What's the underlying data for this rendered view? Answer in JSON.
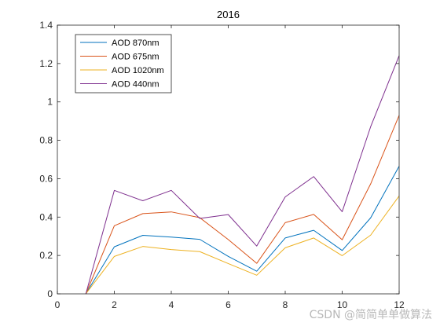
{
  "chart_data": {
    "type": "line",
    "title": "2016",
    "xlabel": "",
    "ylabel": "",
    "xlim": [
      0,
      12
    ],
    "ylim": [
      0,
      1.4
    ],
    "xticks": [
      0,
      2,
      4,
      6,
      8,
      10,
      12
    ],
    "yticks": [
      0,
      0.2,
      0.4,
      0.6,
      0.8,
      1,
      1.2,
      1.4
    ],
    "xtick_labels": [
      "0",
      "2",
      "4",
      "6",
      "8",
      "10",
      "12"
    ],
    "ytick_labels": [
      "0",
      "0.2",
      "0.4",
      "0.6",
      "0.8",
      "1",
      "1.2",
      "1.4"
    ],
    "grid": false,
    "legend_position": "top-left",
    "x": [
      1,
      2,
      3,
      4,
      5,
      6,
      7,
      8,
      9,
      10,
      11,
      12
    ],
    "series": [
      {
        "name": "AOD 870nm",
        "color": "#0072BD",
        "values": [
          0,
          0.245,
          0.305,
          0.296,
          0.284,
          0.195,
          0.118,
          0.291,
          0.331,
          0.226,
          0.396,
          0.665
        ]
      },
      {
        "name": "AOD 675nm",
        "color": "#D95319",
        "values": [
          0,
          0.355,
          0.418,
          0.427,
          0.397,
          0.283,
          0.159,
          0.371,
          0.414,
          0.282,
          0.573,
          0.93
        ]
      },
      {
        "name": "AOD 1020nm",
        "color": "#EDB120",
        "values": [
          0,
          0.195,
          0.247,
          0.231,
          0.22,
          0.158,
          0.097,
          0.24,
          0.291,
          0.199,
          0.306,
          0.51
        ]
      },
      {
        "name": "AOD 440nm",
        "color": "#7E2F8E",
        "values": [
          0,
          0.539,
          0.485,
          0.539,
          0.393,
          0.413,
          0.249,
          0.505,
          0.611,
          0.428,
          0.871,
          1.241
        ]
      }
    ]
  },
  "watermark": "CSDN @简简单单做算法"
}
